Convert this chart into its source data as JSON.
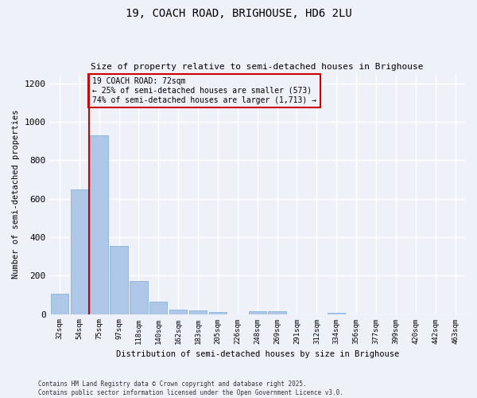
{
  "title1": "19, COACH ROAD, BRIGHOUSE, HD6 2LU",
  "title2": "Size of property relative to semi-detached houses in Brighouse",
  "xlabel": "Distribution of semi-detached houses by size in Brighouse",
  "ylabel": "Number of semi-detached properties",
  "bar_labels": [
    "32sqm",
    "54sqm",
    "75sqm",
    "97sqm",
    "118sqm",
    "140sqm",
    "162sqm",
    "183sqm",
    "205sqm",
    "226sqm",
    "248sqm",
    "269sqm",
    "291sqm",
    "312sqm",
    "334sqm",
    "356sqm",
    "377sqm",
    "399sqm",
    "420sqm",
    "442sqm",
    "463sqm"
  ],
  "bar_values": [
    105,
    650,
    930,
    355,
    170,
    65,
    25,
    20,
    12,
    0,
    15,
    15,
    0,
    0,
    5,
    0,
    0,
    0,
    0,
    0,
    0
  ],
  "bar_color": "#aec6e8",
  "bar_edge_color": "#7aaed0",
  "vline_x": 1.5,
  "vline_color": "#cc0000",
  "annotation_text": "19 COACH ROAD: 72sqm\n← 25% of semi-detached houses are smaller (573)\n74% of semi-detached houses are larger (1,713) →",
  "annotation_box_color": "#cc0000",
  "ylim": [
    0,
    1250
  ],
  "yticks": [
    0,
    200,
    400,
    600,
    800,
    1000,
    1200
  ],
  "background_color": "#eef2f8",
  "grid_color": "#ffffff",
  "footer1": "Contains HM Land Registry data © Crown copyright and database right 2025.",
  "footer2": "Contains public sector information licensed under the Open Government Licence v3.0."
}
